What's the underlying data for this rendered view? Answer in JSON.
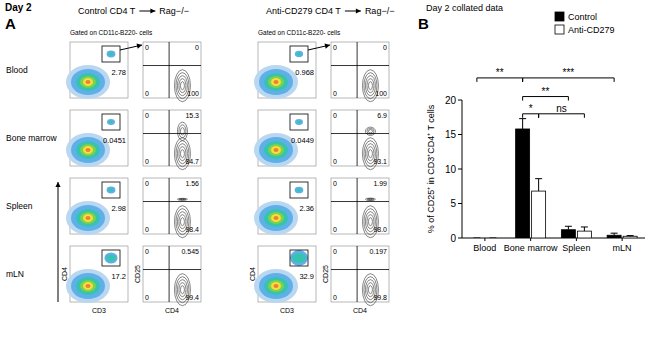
{
  "panel_a": {
    "label": "A",
    "day": "Day 2",
    "rows": [
      "Blood",
      "Bone marrow",
      "Spleen",
      "mLN"
    ],
    "groups": [
      {
        "title": "Control CD4 T",
        "recipient": "Rag−/−",
        "gating": "Gated on CD11c-B220- cells",
        "gate_axes": {
          "x": "CD3",
          "y": "CD4"
        },
        "quadrant_axes": {
          "x": "CD4",
          "y": "CD25"
        },
        "plots": [
          {
            "gate": "2.78",
            "quadrants": [
              "0",
              "0",
              "0",
              "100"
            ]
          },
          {
            "gate": "0.0451",
            "quadrants": [
              "0",
              "15.3",
              "0",
              "84.7"
            ]
          },
          {
            "gate": "2.98",
            "quadrants": [
              "0",
              "1.56",
              "0",
              "98.4"
            ]
          },
          {
            "gate": "17.2",
            "quadrants": [
              "0",
              "0.545",
              "0",
              "99.4"
            ]
          }
        ]
      },
      {
        "title": "Anti-CD279 CD4 T",
        "recipient": "Rag−/−",
        "gating": "Gated on CD11c-B220- cells",
        "gate_axes": {
          "x": "CD3",
          "y": "CD4"
        },
        "quadrant_axes": {
          "x": "CD4",
          "y": "CD25"
        },
        "plots": [
          {
            "gate": "0.968",
            "quadrants": [
              "0",
              "0",
              "0",
              "100"
            ]
          },
          {
            "gate": "0.0449",
            "quadrants": [
              "0",
              "6.9",
              "0",
              "93.1"
            ]
          },
          {
            "gate": "2.36",
            "quadrants": [
              "0",
              "1.99",
              "0",
              "98.0"
            ]
          },
          {
            "gate": "32.9",
            "quadrants": [
              "0",
              "0.197",
              "0",
              "99.8"
            ]
          }
        ]
      }
    ]
  },
  "panel_b": {
    "label": "B"
  },
  "chart_data": {
    "type": "bar",
    "title": "Day 2 collated data",
    "categories": [
      "Blood",
      "Bone marrow",
      "Spleen",
      "mLN"
    ],
    "series": [
      {
        "name": "Control",
        "color": "#000000",
        "values": [
          0,
          15.8,
          1.2,
          0.4
        ],
        "errors": [
          0,
          1.5,
          0.5,
          0.3
        ]
      },
      {
        "name": "Anti-CD279",
        "color": "#ffffff",
        "values": [
          0,
          6.8,
          1.0,
          0.25
        ],
        "errors": [
          0,
          1.8,
          0.6,
          0.1
        ]
      }
    ],
    "ylim": [
      0,
      20
    ],
    "yticks": [
      0,
      5,
      10,
      15,
      20
    ],
    "y_label": "% of CD25⁺ in CD3⁺CD4⁺ T cells",
    "legend": "upper right",
    "annotations": [
      {
        "text": "**",
        "from": [
          0,
          0
        ],
        "to": [
          1,
          0
        ],
        "y": 23.2
      },
      {
        "text": "***",
        "from": [
          1,
          0
        ],
        "to": [
          3,
          0
        ],
        "y": 23.2
      },
      {
        "text": "**",
        "from": [
          1,
          0
        ],
        "to": [
          2,
          0
        ],
        "y": 20.5
      },
      {
        "text": "*",
        "from": [
          1,
          0
        ],
        "to": [
          1,
          1
        ],
        "y": 18
      },
      {
        "text": "ns",
        "from": [
          1,
          1
        ],
        "to": [
          2,
          1
        ],
        "y": 18
      }
    ]
  }
}
